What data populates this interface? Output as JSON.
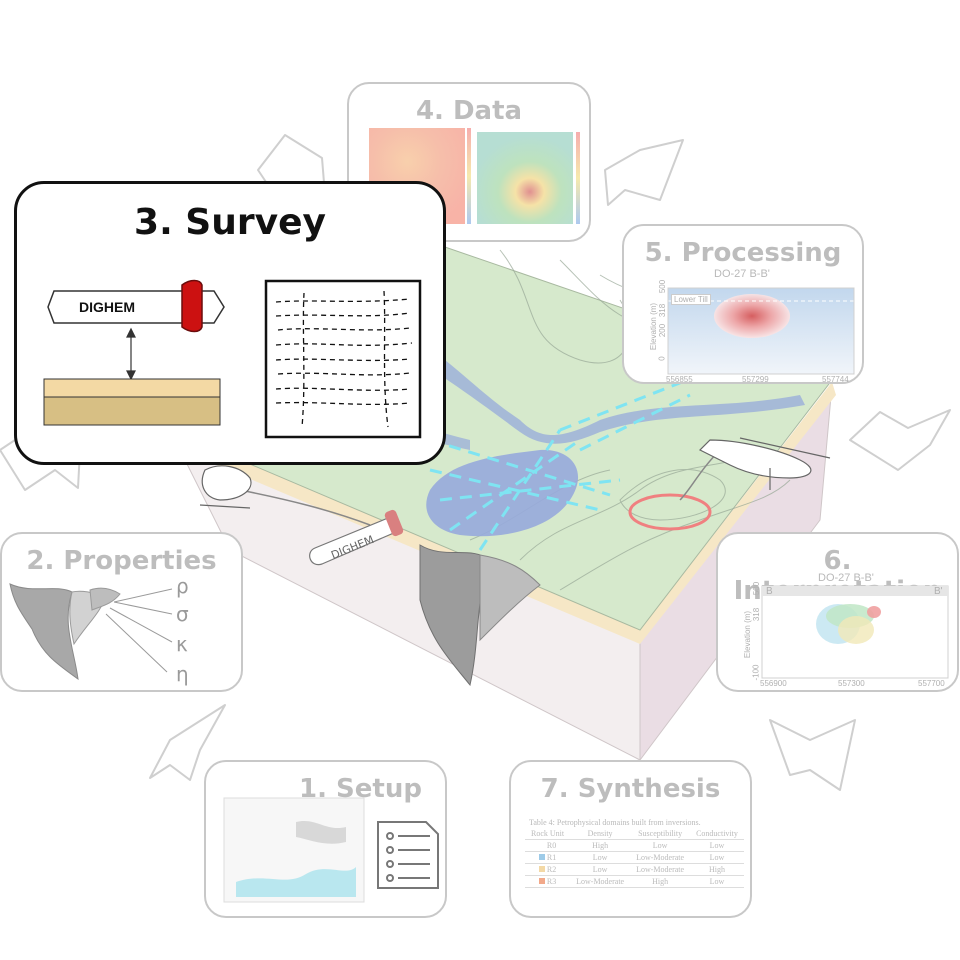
{
  "block_labels": {
    "instrument": "DIGHEM"
  },
  "panels": {
    "survey": {
      "title": "3. Survey",
      "instrument_label": "DIGHEM"
    },
    "data": {
      "title": "4. Data"
    },
    "processing": {
      "title": "5. Processing",
      "subtitle": "DO-27 B-B'",
      "ylabel": "Elevation (m)",
      "yticks": [
        "500",
        "318",
        "200",
        "0"
      ],
      "xticks": [
        "556855",
        "557299",
        "557744"
      ],
      "annotation": "Lower Till"
    },
    "interpretation": {
      "title": "6. Interpretation",
      "subtitle": "DO-27 B-B'",
      "left_marker": "B",
      "right_marker": "B'",
      "ylabel": "Elevation (m)",
      "yticks": [
        "500",
        "318",
        "-100"
      ],
      "xticks": [
        "556900",
        "557300",
        "557700"
      ]
    },
    "synthesis": {
      "title": "7. Synthesis",
      "caption": "Table 4: Petrophysical domains built from inversions.",
      "headers": [
        "Rock Unit",
        "Density",
        "Susceptibility",
        "Conductivity"
      ],
      "rows": [
        [
          "R0",
          "High",
          "Low",
          "Low"
        ],
        [
          "R1",
          "Low",
          "Low-Moderate",
          "Low"
        ],
        [
          "R2",
          "Low",
          "Low-Moderate",
          "High"
        ],
        [
          "R3",
          "Low-Moderate",
          "High",
          "Low"
        ]
      ],
      "row_colors": [
        "#ffffff",
        "#9ecbe8",
        "#f3d9a6",
        "#f2a98a"
      ]
    },
    "setup": {
      "title": "1. Setup"
    },
    "properties": {
      "title": "2. Properties",
      "symbols": [
        "ρ",
        "σ",
        "κ",
        "η"
      ]
    }
  },
  "colors": {
    "panel_border": "#c8c8c8",
    "faded_text": "#bdbdbd",
    "survey_border": "#111111",
    "flight_lines": "#7fe4f2",
    "loop_ring": "#f08080",
    "instrument_tip": "#cc1111"
  }
}
